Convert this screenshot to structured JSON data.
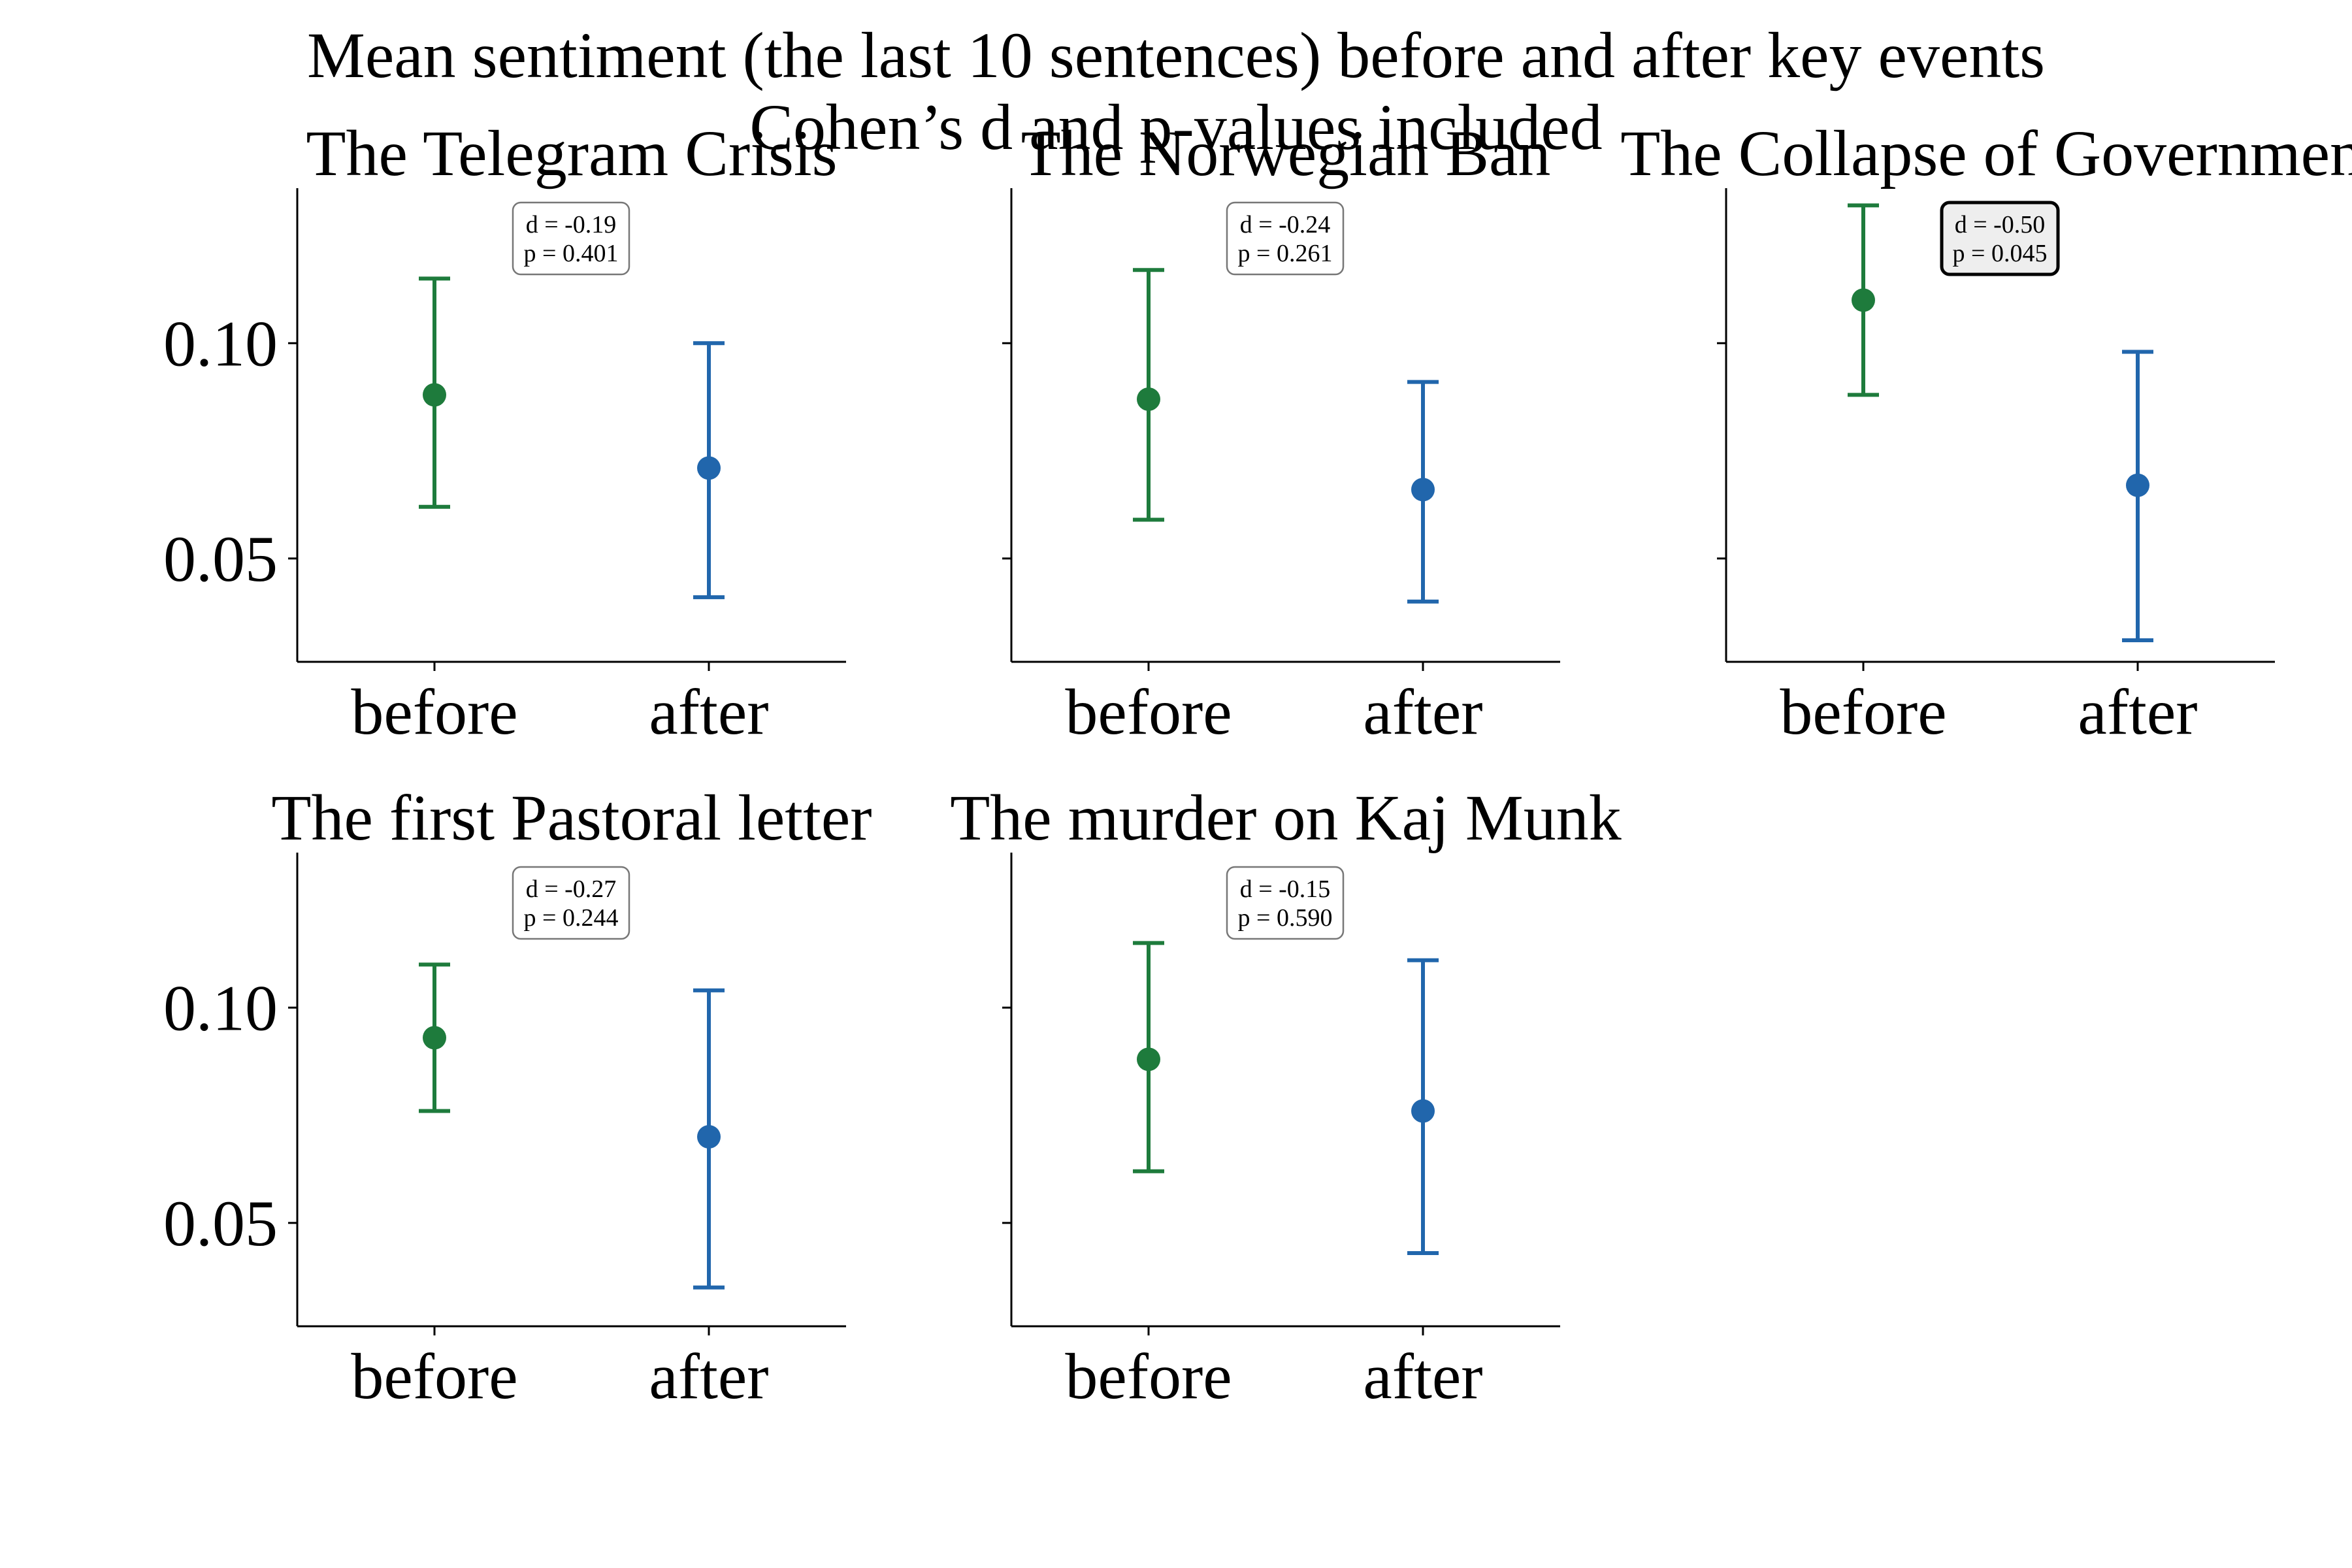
{
  "figure": {
    "title": "Mean sentiment (the last 10 sentences) before and after key events",
    "subtitle": "Cohen’s d and p-values included"
  },
  "colors": {
    "before": "#1e7b3c",
    "after": "#2166ac",
    "highlight_box": "#eeeeee",
    "axis": "#000000"
  },
  "chart_data": [
    {
      "type": "scatter",
      "title": "The Telegram Crisis",
      "categories": [
        "before",
        "after"
      ],
      "series": [
        {
          "x": "before",
          "mean": 0.088,
          "lower": 0.062,
          "upper": 0.115
        },
        {
          "x": "after",
          "mean": 0.071,
          "lower": 0.041,
          "upper": 0.1
        }
      ],
      "annotation": {
        "d": "d = -0.19",
        "p": "p = 0.401",
        "highlight": false
      },
      "yticks": [
        "0.10",
        "0.05"
      ],
      "ylim": [
        0.026,
        0.136
      ]
    },
    {
      "type": "scatter",
      "title": "The Norwegian Ban",
      "categories": [
        "before",
        "after"
      ],
      "series": [
        {
          "x": "before",
          "mean": 0.087,
          "lower": 0.059,
          "upper": 0.117
        },
        {
          "x": "after",
          "mean": 0.066,
          "lower": 0.04,
          "upper": 0.091
        }
      ],
      "annotation": {
        "d": "d = -0.24",
        "p": "p = 0.261",
        "highlight": false
      },
      "yticks": [
        "0.10",
        "0.05"
      ],
      "ylim": [
        0.026,
        0.136
      ]
    },
    {
      "type": "scatter",
      "title": "The Collapse of Government",
      "categories": [
        "before",
        "after"
      ],
      "series": [
        {
          "x": "before",
          "mean": 0.11,
          "lower": 0.088,
          "upper": 0.132
        },
        {
          "x": "after",
          "mean": 0.067,
          "lower": 0.031,
          "upper": 0.098
        }
      ],
      "annotation": {
        "d": "d = -0.50",
        "p": "p = 0.045",
        "highlight": true
      },
      "yticks": [
        "0.10",
        "0.05"
      ],
      "ylim": [
        0.026,
        0.136
      ]
    },
    {
      "type": "scatter",
      "title": "The first Pastoral letter",
      "categories": [
        "before",
        "after"
      ],
      "series": [
        {
          "x": "before",
          "mean": 0.093,
          "lower": 0.076,
          "upper": 0.11
        },
        {
          "x": "after",
          "mean": 0.07,
          "lower": 0.035,
          "upper": 0.104
        }
      ],
      "annotation": {
        "d": "d = -0.27",
        "p": "p = 0.244",
        "highlight": false
      },
      "yticks": [
        "0.10",
        "0.05"
      ],
      "ylim": [
        0.026,
        0.136
      ]
    },
    {
      "type": "scatter",
      "title": "The murder on Kaj Munk",
      "categories": [
        "before",
        "after"
      ],
      "series": [
        {
          "x": "before",
          "mean": 0.088,
          "lower": 0.062,
          "upper": 0.115
        },
        {
          "x": "after",
          "mean": 0.076,
          "lower": 0.043,
          "upper": 0.111
        }
      ],
      "annotation": {
        "d": "d = -0.15",
        "p": "p = 0.590",
        "highlight": false
      },
      "yticks": [
        "0.10",
        "0.05"
      ],
      "ylim": [
        0.026,
        0.136
      ]
    }
  ]
}
